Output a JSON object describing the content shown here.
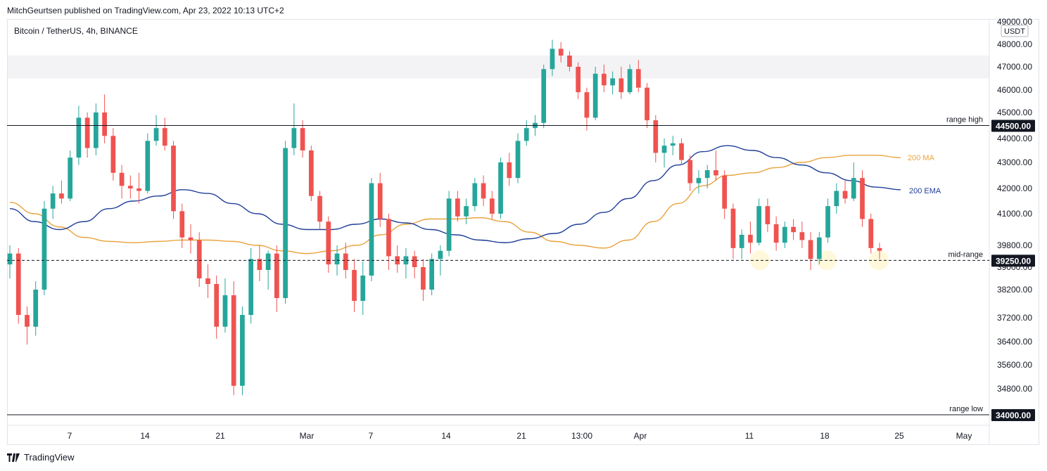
{
  "header": {
    "published": "MitchGeurtsen published on TradingView.com, Apr 23, 2022 10:13 UTC+2",
    "symbol": "Bitcoin / TetherUS, 4h, BINANCE"
  },
  "footer": {
    "brand": "TradingView"
  },
  "colors": {
    "up": "#26a69a",
    "down": "#ef5350",
    "ma": "#e8a33d",
    "ema": "#1f3f99",
    "zone": "#f3f3f5",
    "highlight": "#fff7d6"
  },
  "chart_data": {
    "type": "candlestick",
    "title": "Bitcoin / TetherUS, 4h, BINANCE",
    "currency_label": "USDT",
    "y_ticks": [
      49000,
      48000,
      47000,
      46000,
      45000,
      44000,
      43000,
      42000,
      41000,
      39800,
      39000,
      38200,
      37200,
      36400,
      35600,
      34800
    ],
    "x_ticks": [
      "7",
      "14",
      "21",
      "Mar",
      "7",
      "14",
      "21",
      "13:00",
      "Apr",
      "11",
      "18",
      "25",
      "May"
    ],
    "levels": [
      {
        "name": "range high",
        "price": 44500,
        "style": "solid",
        "badge": "44500.00"
      },
      {
        "name": "mid-range",
        "price": 39250,
        "style": "dashed",
        "badge": "39250.00"
      },
      {
        "name": "range low",
        "price": 34000,
        "style": "solid",
        "badge": "34000.00"
      }
    ],
    "resistance_zone": [
      46500,
      47500
    ],
    "series": [
      {
        "name": "200 MA",
        "values": [
          41450,
          41000,
          40500,
          40100,
          39950,
          39900,
          39950,
          40000,
          40000,
          39950,
          39800,
          39600,
          39500,
          39600,
          39800,
          40200,
          40600,
          40800,
          40800,
          40850,
          40700,
          40300,
          39950,
          39800,
          39700,
          40000,
          40700,
          41400,
          42100,
          42500,
          42600,
          42800,
          43000,
          43200,
          43300,
          43300,
          43200
        ]
      },
      {
        "name": "200 EMA",
        "values": [
          41200,
          40700,
          40400,
          40700,
          41200,
          41500,
          41700,
          41950,
          41800,
          41400,
          41000,
          40600,
          40400,
          40400,
          40600,
          40800,
          40650,
          40400,
          40200,
          40000,
          39900,
          40050,
          40250,
          40600,
          41050,
          41600,
          42300,
          42900,
          43450,
          43700,
          43500,
          43200,
          42900,
          42600,
          42300,
          42050,
          41950
        ]
      }
    ],
    "candles": [
      {
        "o": 39100,
        "h": 39800,
        "l": 38600,
        "c": 39500
      },
      {
        "o": 39500,
        "h": 39700,
        "l": 37000,
        "c": 37300
      },
      {
        "o": 37300,
        "h": 37600,
        "l": 36300,
        "c": 36900
      },
      {
        "o": 36900,
        "h": 38500,
        "l": 36600,
        "c": 38200
      },
      {
        "o": 38200,
        "h": 41500,
        "l": 38000,
        "c": 41200
      },
      {
        "o": 41200,
        "h": 42100,
        "l": 40800,
        "c": 41800
      },
      {
        "o": 41800,
        "h": 42300,
        "l": 41400,
        "c": 41600
      },
      {
        "o": 41600,
        "h": 43500,
        "l": 41500,
        "c": 43200
      },
      {
        "o": 43200,
        "h": 45300,
        "l": 42900,
        "c": 44800
      },
      {
        "o": 44800,
        "h": 45000,
        "l": 43200,
        "c": 43600
      },
      {
        "o": 43600,
        "h": 45400,
        "l": 43300,
        "c": 45000
      },
      {
        "o": 45000,
        "h": 45800,
        "l": 43800,
        "c": 44100
      },
      {
        "o": 44100,
        "h": 44400,
        "l": 42300,
        "c": 42600
      },
      {
        "o": 42600,
        "h": 42900,
        "l": 41600,
        "c": 42100
      },
      {
        "o": 42100,
        "h": 42500,
        "l": 41600,
        "c": 42000
      },
      {
        "o": 42000,
        "h": 42600,
        "l": 41400,
        "c": 41900
      },
      {
        "o": 41900,
        "h": 44200,
        "l": 41800,
        "c": 43900
      },
      {
        "o": 43900,
        "h": 44900,
        "l": 43700,
        "c": 44400
      },
      {
        "o": 44400,
        "h": 44800,
        "l": 43500,
        "c": 43700
      },
      {
        "o": 43700,
        "h": 43900,
        "l": 40800,
        "c": 41100
      },
      {
        "o": 41100,
        "h": 41400,
        "l": 39700,
        "c": 40100
      },
      {
        "o": 40100,
        "h": 40600,
        "l": 39500,
        "c": 40000
      },
      {
        "o": 40000,
        "h": 40300,
        "l": 38300,
        "c": 38600
      },
      {
        "o": 38600,
        "h": 39100,
        "l": 37900,
        "c": 38400
      },
      {
        "o": 38400,
        "h": 38700,
        "l": 36500,
        "c": 36900
      },
      {
        "o": 36900,
        "h": 38600,
        "l": 36700,
        "c": 38000
      },
      {
        "o": 38000,
        "h": 38500,
        "l": 34600,
        "c": 34900
      },
      {
        "o": 34900,
        "h": 37600,
        "l": 34600,
        "c": 37300
      },
      {
        "o": 37300,
        "h": 39700,
        "l": 37000,
        "c": 39300
      },
      {
        "o": 39300,
        "h": 39800,
        "l": 38500,
        "c": 38900
      },
      {
        "o": 38900,
        "h": 39600,
        "l": 38200,
        "c": 39500
      },
      {
        "o": 39500,
        "h": 39800,
        "l": 37400,
        "c": 37900
      },
      {
        "o": 37900,
        "h": 43900,
        "l": 37700,
        "c": 43600
      },
      {
        "o": 43600,
        "h": 45400,
        "l": 43300,
        "c": 44400
      },
      {
        "o": 44400,
        "h": 44700,
        "l": 43200,
        "c": 43500
      },
      {
        "o": 43500,
        "h": 43700,
        "l": 41500,
        "c": 41700
      },
      {
        "o": 41700,
        "h": 41900,
        "l": 40400,
        "c": 40700
      },
      {
        "o": 40700,
        "h": 40900,
        "l": 38800,
        "c": 39100
      },
      {
        "o": 39100,
        "h": 39800,
        "l": 38700,
        "c": 39500
      },
      {
        "o": 39500,
        "h": 39900,
        "l": 38600,
        "c": 38900
      },
      {
        "o": 38900,
        "h": 39300,
        "l": 37400,
        "c": 37800
      },
      {
        "o": 37800,
        "h": 39200,
        "l": 37300,
        "c": 38700
      },
      {
        "o": 38700,
        "h": 42400,
        "l": 38500,
        "c": 42200
      },
      {
        "o": 42200,
        "h": 42600,
        "l": 40500,
        "c": 40800
      },
      {
        "o": 40800,
        "h": 41000,
        "l": 38900,
        "c": 39400
      },
      {
        "o": 39400,
        "h": 39800,
        "l": 38800,
        "c": 39100
      },
      {
        "o": 39100,
        "h": 39700,
        "l": 38600,
        "c": 39400
      },
      {
        "o": 39400,
        "h": 39600,
        "l": 38600,
        "c": 39000
      },
      {
        "o": 39000,
        "h": 39300,
        "l": 37800,
        "c": 38200
      },
      {
        "o": 38200,
        "h": 39500,
        "l": 38000,
        "c": 39300
      },
      {
        "o": 39300,
        "h": 39800,
        "l": 38700,
        "c": 39600
      },
      {
        "o": 39600,
        "h": 41900,
        "l": 39400,
        "c": 41600
      },
      {
        "o": 41600,
        "h": 41900,
        "l": 40700,
        "c": 40900
      },
      {
        "o": 40900,
        "h": 41600,
        "l": 40600,
        "c": 41300
      },
      {
        "o": 41300,
        "h": 42400,
        "l": 41100,
        "c": 42200
      },
      {
        "o": 42200,
        "h": 42500,
        "l": 41300,
        "c": 41600
      },
      {
        "o": 41600,
        "h": 41900,
        "l": 40800,
        "c": 41000
      },
      {
        "o": 41000,
        "h": 43200,
        "l": 40800,
        "c": 43000
      },
      {
        "o": 43000,
        "h": 43400,
        "l": 42100,
        "c": 42400
      },
      {
        "o": 42400,
        "h": 44200,
        "l": 42200,
        "c": 43900
      },
      {
        "o": 43900,
        "h": 44700,
        "l": 43700,
        "c": 44400
      },
      {
        "o": 44400,
        "h": 44900,
        "l": 44100,
        "c": 44600
      },
      {
        "o": 44600,
        "h": 47100,
        "l": 44400,
        "c": 46900
      },
      {
        "o": 46900,
        "h": 48200,
        "l": 46600,
        "c": 47800
      },
      {
        "o": 47800,
        "h": 48100,
        "l": 47200,
        "c": 47500
      },
      {
        "o": 47500,
        "h": 47700,
        "l": 46800,
        "c": 47000
      },
      {
        "o": 47000,
        "h": 47200,
        "l": 45600,
        "c": 45900
      },
      {
        "o": 45900,
        "h": 46100,
        "l": 44300,
        "c": 44800
      },
      {
        "o": 44800,
        "h": 47000,
        "l": 44700,
        "c": 46700
      },
      {
        "o": 46700,
        "h": 47100,
        "l": 45900,
        "c": 46200
      },
      {
        "o": 46200,
        "h": 46800,
        "l": 45800,
        "c": 46500
      },
      {
        "o": 46500,
        "h": 47000,
        "l": 45600,
        "c": 45900
      },
      {
        "o": 45900,
        "h": 47100,
        "l": 45800,
        "c": 46900
      },
      {
        "o": 46900,
        "h": 47300,
        "l": 45900,
        "c": 46100
      },
      {
        "o": 46100,
        "h": 46300,
        "l": 44400,
        "c": 44700
      },
      {
        "o": 44700,
        "h": 44900,
        "l": 43000,
        "c": 43400
      },
      {
        "o": 43400,
        "h": 44000,
        "l": 42800,
        "c": 43700
      },
      {
        "o": 43700,
        "h": 44100,
        "l": 43300,
        "c": 43800
      },
      {
        "o": 43800,
        "h": 44000,
        "l": 42900,
        "c": 43100
      },
      {
        "o": 43100,
        "h": 43300,
        "l": 41900,
        "c": 42200
      },
      {
        "o": 42200,
        "h": 42700,
        "l": 41800,
        "c": 42400
      },
      {
        "o": 42400,
        "h": 42900,
        "l": 42000,
        "c": 42700
      },
      {
        "o": 42700,
        "h": 43500,
        "l": 42300,
        "c": 42500
      },
      {
        "o": 42500,
        "h": 42700,
        "l": 40800,
        "c": 41200
      },
      {
        "o": 41200,
        "h": 41400,
        "l": 39300,
        "c": 39700
      },
      {
        "o": 39700,
        "h": 40400,
        "l": 39300,
        "c": 40200
      },
      {
        "o": 40200,
        "h": 40700,
        "l": 39500,
        "c": 39900
      },
      {
        "o": 39900,
        "h": 41600,
        "l": 39800,
        "c": 41300
      },
      {
        "o": 41300,
        "h": 41600,
        "l": 40300,
        "c": 40600
      },
      {
        "o": 40600,
        "h": 40900,
        "l": 39600,
        "c": 39900
      },
      {
        "o": 39900,
        "h": 40700,
        "l": 39700,
        "c": 40500
      },
      {
        "o": 40500,
        "h": 40800,
        "l": 40000,
        "c": 40300
      },
      {
        "o": 40300,
        "h": 40700,
        "l": 39700,
        "c": 40000
      },
      {
        "o": 40000,
        "h": 40300,
        "l": 38900,
        "c": 39300
      },
      {
        "o": 39300,
        "h": 40300,
        "l": 39100,
        "c": 40100
      },
      {
        "o": 40100,
        "h": 41600,
        "l": 39900,
        "c": 41300
      },
      {
        "o": 41300,
        "h": 42200,
        "l": 41000,
        "c": 41900
      },
      {
        "o": 41900,
        "h": 42300,
        "l": 41400,
        "c": 41600
      },
      {
        "o": 41600,
        "h": 43000,
        "l": 41500,
        "c": 42400
      },
      {
        "o": 42400,
        "h": 42700,
        "l": 40500,
        "c": 40800
      },
      {
        "o": 40800,
        "h": 41000,
        "l": 39500,
        "c": 39700
      },
      {
        "o": 39700,
        "h": 39900,
        "l": 39300,
        "c": 39600
      }
    ]
  }
}
